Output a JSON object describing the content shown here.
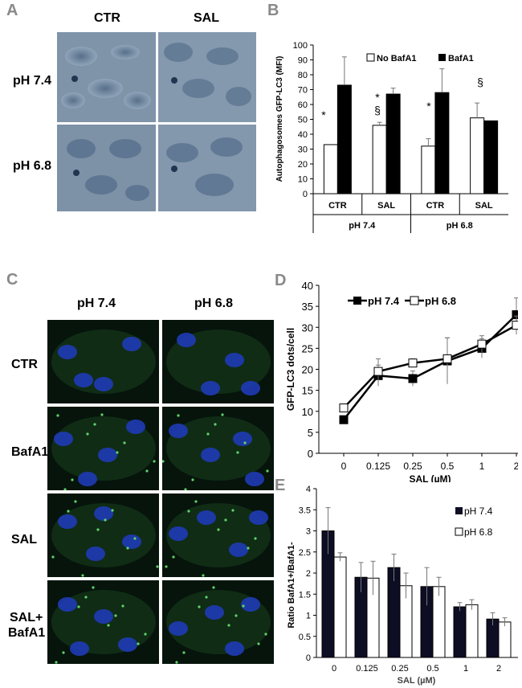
{
  "panels": {
    "A": {
      "letter": "A",
      "col_labels": [
        "CTR",
        "SAL"
      ],
      "row_labels": [
        "pH 7.4",
        "pH 6.8"
      ]
    },
    "C": {
      "letter": "C",
      "col_labels": [
        "pH 7.4",
        "pH 6.8"
      ],
      "row_labels": [
        "CTR",
        "BafA1",
        "SAL",
        "SAL+",
        "BafA1"
      ]
    }
  },
  "chart_data": [
    {
      "panel": "B",
      "type": "bar",
      "ylabel": "Autophagosomes GFP-LC3 (MFI)",
      "ylim": [
        0,
        100
      ],
      "yticks": [
        0,
        10,
        20,
        30,
        40,
        50,
        60,
        70,
        80,
        90,
        100
      ],
      "categories": [
        "CTR",
        "SAL",
        "CTR",
        "SAL"
      ],
      "groups": [
        "pH 7.4",
        "pH 6.8"
      ],
      "series": [
        {
          "name": "No BafA1",
          "color": "#ffffff",
          "values": [
            33,
            46,
            32,
            51
          ],
          "errors": [
            0,
            2,
            5,
            10
          ]
        },
        {
          "name": "BafA1",
          "color": "#000000",
          "values": [
            73,
            67,
            68,
            49
          ],
          "errors": [
            19,
            4,
            16,
            0
          ]
        }
      ],
      "annotations": [
        "*",
        "*",
        "§",
        "*",
        "§"
      ],
      "legend": "top"
    },
    {
      "panel": "D",
      "type": "line",
      "xlabel": "SAL (µM)",
      "ylabel": "GFP-LC3 dots/cell",
      "ylim": [
        0,
        40
      ],
      "yticks": [
        0,
        5,
        10,
        15,
        20,
        25,
        30,
        35,
        40
      ],
      "x": [
        "0",
        "0.125",
        "0.25",
        "0.5",
        "1",
        "2"
      ],
      "series": [
        {
          "name": "pH 7.4",
          "marker": "filled-square",
          "values": [
            8,
            18.5,
            17.8,
            22,
            25,
            33
          ],
          "errors": [
            0.6,
            2.5,
            1.8,
            5.5,
            2.3,
            4
          ]
        },
        {
          "name": "pH 6.8",
          "marker": "open-square",
          "values": [
            10.8,
            19.5,
            21.5,
            22.5,
            26,
            30.5
          ],
          "errors": [
            0.8,
            3,
            1,
            5,
            2,
            2.2
          ]
        }
      ],
      "legend": "top-left"
    },
    {
      "panel": "E",
      "type": "bar",
      "xlabel": "SAL (µM)",
      "ylabel": "Ratio BafA1+/BafA1-",
      "ylim": [
        0,
        4
      ],
      "yticks": [
        0,
        0.5,
        1,
        1.5,
        2,
        2.5,
        3,
        3.5,
        4
      ],
      "categories": [
        "0",
        "0.125",
        "0.25",
        "0.5",
        "1",
        "2"
      ],
      "series": [
        {
          "name": "pH 7.4",
          "color": "#0d0d24",
          "values": [
            3.0,
            1.9,
            2.13,
            1.68,
            1.2,
            0.91
          ],
          "errors": [
            0.55,
            0.35,
            0.32,
            0.45,
            0.1,
            0.15
          ]
        },
        {
          "name": "pH 6.8",
          "color": "#ffffff",
          "values": [
            2.38,
            1.88,
            1.7,
            1.68,
            1.25,
            0.84
          ],
          "errors": [
            0.1,
            0.4,
            0.3,
            0.22,
            0.12,
            0.1
          ]
        }
      ],
      "legend": "top-right"
    }
  ]
}
